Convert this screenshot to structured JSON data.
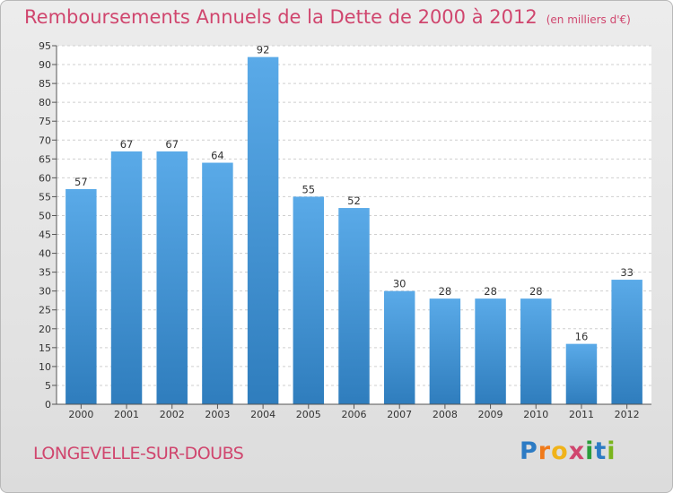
{
  "title": "Remboursements Annuels de la Dette de 2000 à 2012",
  "unit": "(en milliers d'€)",
  "commune": "LONGEVELLE-SUR-DOUBS",
  "brand": {
    "letters": [
      "P",
      "r",
      "o",
      "x",
      "i",
      "t",
      "i"
    ],
    "colors": [
      "#2c7bc4",
      "#f07a1a",
      "#f0b31a",
      "#d0466e",
      "#2a9d3a",
      "#2c7bc4",
      "#7ab51d"
    ]
  },
  "colors": {
    "title": "#d0466e",
    "bar_light": "#5aaae8",
    "bar_dark": "#2f7dbd"
  },
  "chart_data": {
    "type": "bar",
    "categories": [
      "2000",
      "2001",
      "2002",
      "2003",
      "2004",
      "2005",
      "2006",
      "2007",
      "2008",
      "2009",
      "2010",
      "2011",
      "2012"
    ],
    "values": [
      57,
      67,
      67,
      64,
      92,
      55,
      52,
      30,
      28,
      28,
      28,
      16,
      33
    ],
    "ylim": [
      0,
      95
    ],
    "yticks": [
      0,
      5,
      10,
      15,
      20,
      25,
      30,
      35,
      40,
      45,
      50,
      55,
      60,
      65,
      70,
      75,
      80,
      85,
      90,
      95
    ],
    "grid": true,
    "data_labels": true
  }
}
